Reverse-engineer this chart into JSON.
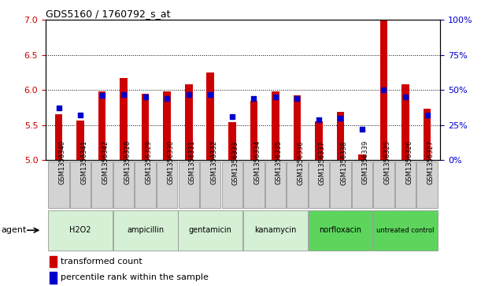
{
  "title": "GDS5160 / 1760792_s_at",
  "samples": [
    "GSM1356340",
    "GSM1356341",
    "GSM1356342",
    "GSM1356328",
    "GSM1356329",
    "GSM1356330",
    "GSM1356331",
    "GSM1356332",
    "GSM1356333",
    "GSM1356334",
    "GSM1356335",
    "GSM1356336",
    "GSM1356337",
    "GSM1356338",
    "GSM1356339",
    "GSM1356325",
    "GSM1356326",
    "GSM1356327"
  ],
  "transformed_count": [
    5.65,
    5.56,
    5.98,
    6.17,
    5.95,
    5.98,
    6.08,
    6.25,
    5.54,
    5.85,
    5.98,
    5.93,
    5.55,
    5.69,
    5.08,
    7.0,
    6.08,
    5.73
  ],
  "percentile_rank": [
    37,
    32,
    46,
    47,
    45,
    44,
    47,
    47,
    31,
    44,
    45,
    44,
    29,
    30,
    22,
    50,
    45,
    32
  ],
  "groups": [
    {
      "label": "H2O2",
      "start": 0,
      "end": 2,
      "color": "#d5f0d5"
    },
    {
      "label": "ampicillin",
      "start": 3,
      "end": 5,
      "color": "#d5f0d5"
    },
    {
      "label": "gentamicin",
      "start": 6,
      "end": 8,
      "color": "#d5f0d5"
    },
    {
      "label": "kanamycin",
      "start": 9,
      "end": 11,
      "color": "#d5f0d5"
    },
    {
      "label": "norfloxacin",
      "start": 12,
      "end": 14,
      "color": "#5dd55d"
    },
    {
      "label": "untreated control",
      "start": 15,
      "end": 17,
      "color": "#5dd55d"
    }
  ],
  "ylim_left": [
    5.0,
    7.0
  ],
  "ylim_right": [
    0,
    100
  ],
  "yticks_left": [
    5.0,
    5.5,
    6.0,
    6.5,
    7.0
  ],
  "yticks_right": [
    0,
    25,
    50,
    75,
    100
  ],
  "bar_color": "#cc0000",
  "dot_color": "#0000cc",
  "bar_width": 0.35,
  "dot_size": 22,
  "bar_bottom": 5.0,
  "agent_label": "agent",
  "legend_bar_label": "transformed count",
  "legend_dot_label": "percentile rank within the sample",
  "left_tick_color": "#cc0000",
  "right_tick_color": "#0000cc",
  "tick_bg_color": "#d3d3d3",
  "plot_bg_color": "#ffffff",
  "group_border_color": "#888888"
}
